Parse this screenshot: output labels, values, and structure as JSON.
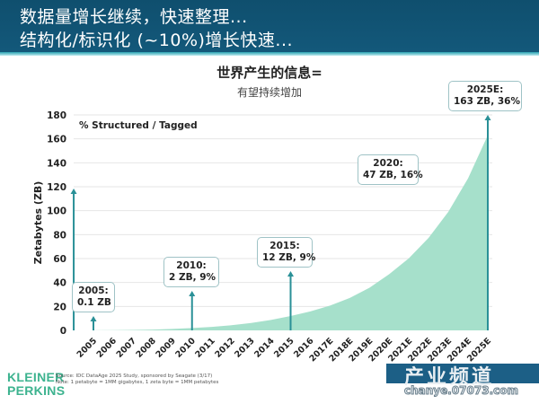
{
  "header": {
    "line1": "数据量增长继续，快速整理...",
    "line2": "结构化/标识化 (~10%)增长快速..."
  },
  "chart_title": {
    "main": "世界产生的信息=",
    "sub": "有望持续增加"
  },
  "legend_note": "% Structured / Tagged",
  "footer": {
    "logo_line1": "KLEINER",
    "logo_line2": "PERKINS",
    "source_line1": "Source: IDC DataAge 2025 Study, sponsored by Seagate (3/17)",
    "source_line2": "Note: 1 petabyte = 1MM gigabytes, 1 zeta byte = 1MM petabytes"
  },
  "watermark": {
    "text": "产业频道",
    "url": "chanye.07073.com"
  },
  "colors": {
    "header_bg": "#13587a",
    "area_fill": "#a6e0cb",
    "arrow": "#2a9097",
    "logo": "#3db38f"
  },
  "annotations": [
    {
      "year": "2005",
      "line1": "2005:",
      "line2": "0.1 ZB"
    },
    {
      "year": "2010",
      "line1": "2010:",
      "line2": "2 ZB, 9%"
    },
    {
      "year": "2015",
      "line1": "2015:",
      "line2": "12 ZB, 9%"
    },
    {
      "year": "2020",
      "line1": "2020:",
      "line2": "47 ZB, 16%"
    },
    {
      "year": "2025E",
      "line1": "2025E:",
      "line2": "163 ZB, 36%"
    }
  ],
  "chart_data": {
    "type": "area",
    "title": "世界产生的信息=",
    "subtitle": "有望持续增加",
    "xlabel": "",
    "ylabel": "Zetabytes (ZB)",
    "ylim": [
      0,
      180
    ],
    "yticks": [
      0,
      20,
      40,
      60,
      80,
      100,
      120,
      140,
      160,
      180
    ],
    "grid": true,
    "categories": [
      "2005",
      "2006",
      "2007",
      "2008",
      "2009",
      "2010",
      "2011",
      "2012",
      "2013",
      "2014",
      "2015",
      "2016",
      "2017E",
      "2018E",
      "2019E",
      "2020E",
      "2021E",
      "2022E",
      "2023E",
      "2024E",
      "2025E"
    ],
    "series": [
      {
        "name": "Zetabytes",
        "values": [
          0.1,
          0.2,
          0.4,
          0.7,
          1.2,
          2,
          2.9,
          4.3,
          6.2,
          8.7,
          12,
          15.8,
          20.7,
          27.1,
          35.6,
          47,
          60.3,
          77.3,
          99.1,
          127,
          163
        ]
      },
      {
        "name": "% Structured / Tagged",
        "values": {
          "2010": 9,
          "2015": 9,
          "2020": 16,
          "2025E": 36
        }
      }
    ],
    "annotations": [
      "2005: 0.1 ZB",
      "2010: 2 ZB, 9%",
      "2015: 12 ZB, 9%",
      "2020: 47 ZB, 16%",
      "2025E: 163 ZB, 36%"
    ],
    "legend": "% Structured / Tagged"
  }
}
